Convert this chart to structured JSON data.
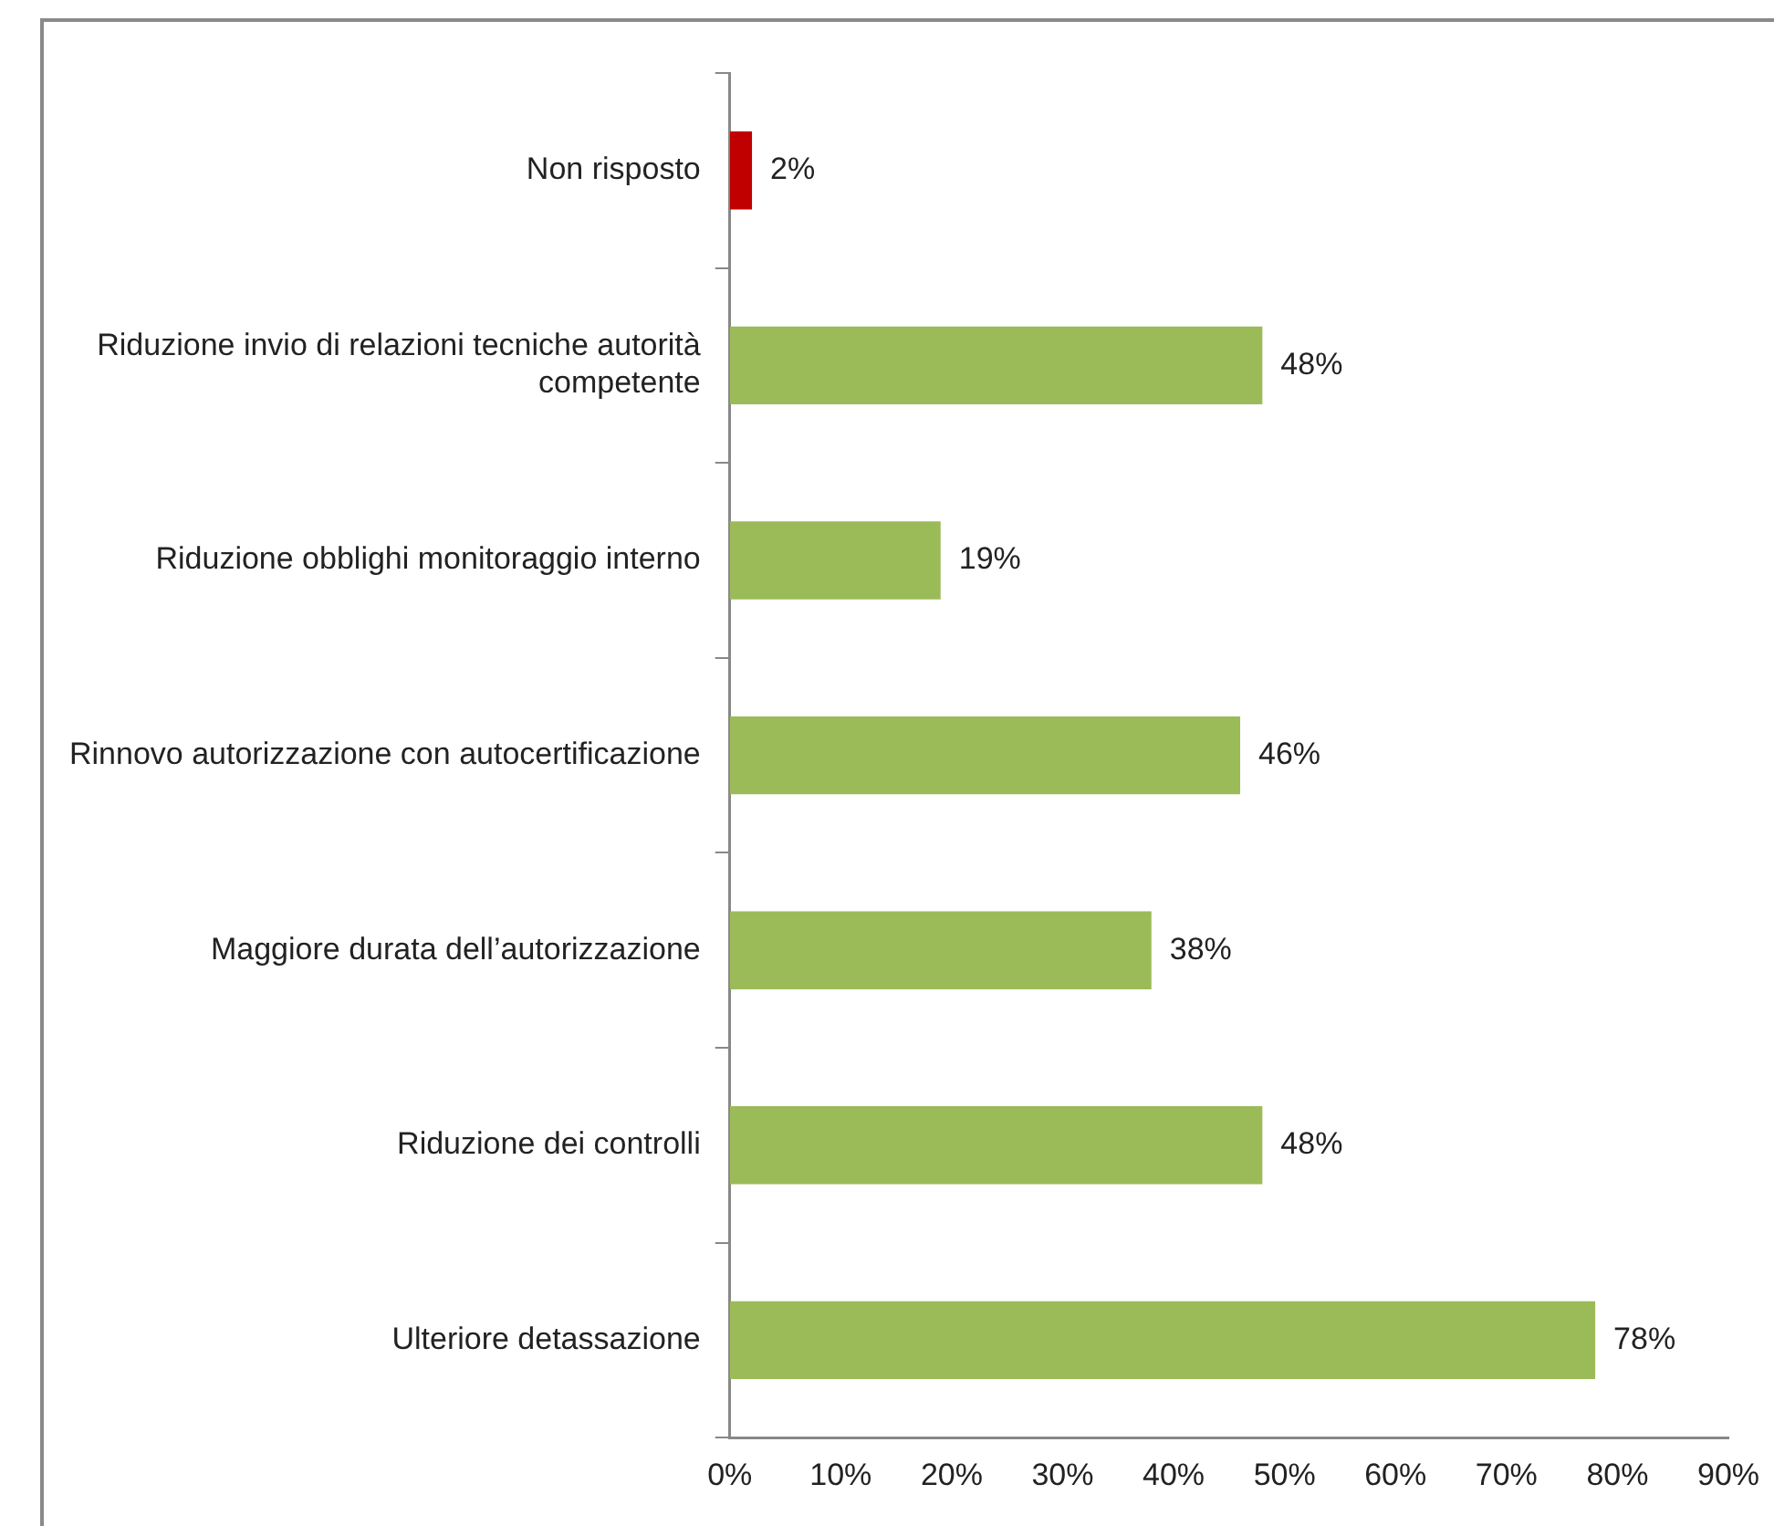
{
  "chart_data": {
    "type": "bar",
    "orientation": "horizontal",
    "categories": [
      "Non risposto",
      "Riduzione invio di relazioni tecniche autorità competente",
      "Riduzione obblighi monitoraggio interno",
      "Rinnovo autorizzazione con autocertificazione",
      "Maggiore durata dell’autorizzazione",
      "Riduzione dei controlli",
      "Ulteriore detassazione"
    ],
    "values": [
      2,
      48,
      19,
      46,
      38,
      48,
      78
    ],
    "colors": [
      "#c00000",
      "#9bbb59",
      "#9bbb59",
      "#9bbb59",
      "#9bbb59",
      "#9bbb59",
      "#9bbb59"
    ],
    "value_labels": [
      "2%",
      "48%",
      "19%",
      "46%",
      "38%",
      "48%",
      "78%"
    ],
    "xlim": [
      0,
      90
    ],
    "xticks": [
      {
        "value": 0,
        "label": "0%"
      },
      {
        "value": 10,
        "label": "10%"
      },
      {
        "value": 20,
        "label": "20%"
      },
      {
        "value": 30,
        "label": "30%"
      },
      {
        "value": 40,
        "label": "40%"
      },
      {
        "value": 50,
        "label": "50%"
      },
      {
        "value": 60,
        "label": "60%"
      },
      {
        "value": 70,
        "label": "70%"
      },
      {
        "value": 80,
        "label": "80%"
      },
      {
        "value": 90,
        "label": "90%"
      }
    ],
    "grid": false,
    "legend": false
  }
}
